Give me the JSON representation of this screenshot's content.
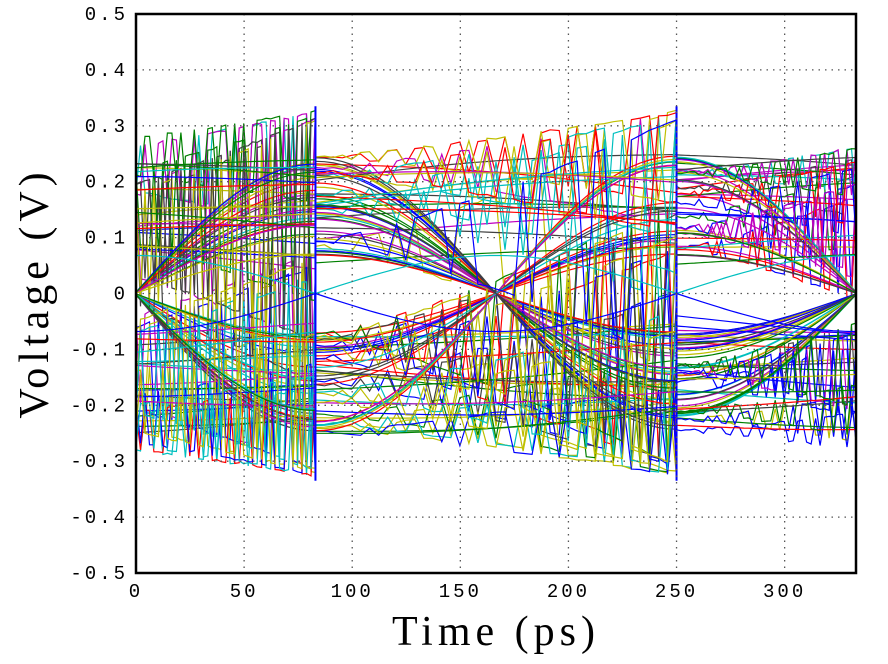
{
  "chart_data": {
    "type": "line",
    "title": "",
    "xlabel": "Time (ps)",
    "ylabel": "Voltage (V)",
    "xlim": [
      0,
      333
    ],
    "ylim": [
      -0.5,
      0.5
    ],
    "xticks": [
      "0",
      "50",
      "100",
      "150",
      "200",
      "250",
      "300"
    ],
    "xtick_values": [
      0,
      50,
      100,
      150,
      200,
      250,
      300
    ],
    "yticks": [
      "0.5",
      "0.4",
      "0.3",
      "0.2",
      "0.1",
      "0",
      "-0.1",
      "-0.2",
      "-0.3",
      "-0.4",
      "-0.5"
    ],
    "ytick_values": [
      0.5,
      0.4,
      0.3,
      0.2,
      0.1,
      0,
      -0.1,
      -0.2,
      -0.3,
      -0.4,
      -0.5
    ],
    "grid": true,
    "plot_style": "eye diagram (many overlaid multicolor traces)",
    "unit_interval_boundaries_ps": [
      83,
      250
    ],
    "eye_opening": {
      "center_ps": 166,
      "half_width_ps": 65,
      "inner_amplitude_v": 0.068,
      "outer_amplitude_v": 0.25,
      "edge_overshoot_v": 0.335
    },
    "trace_colors": [
      "#0000ff",
      "#008000",
      "#ff0000",
      "#00bfbf",
      "#bf00bf",
      "#bfbf00",
      "#404040"
    ]
  }
}
